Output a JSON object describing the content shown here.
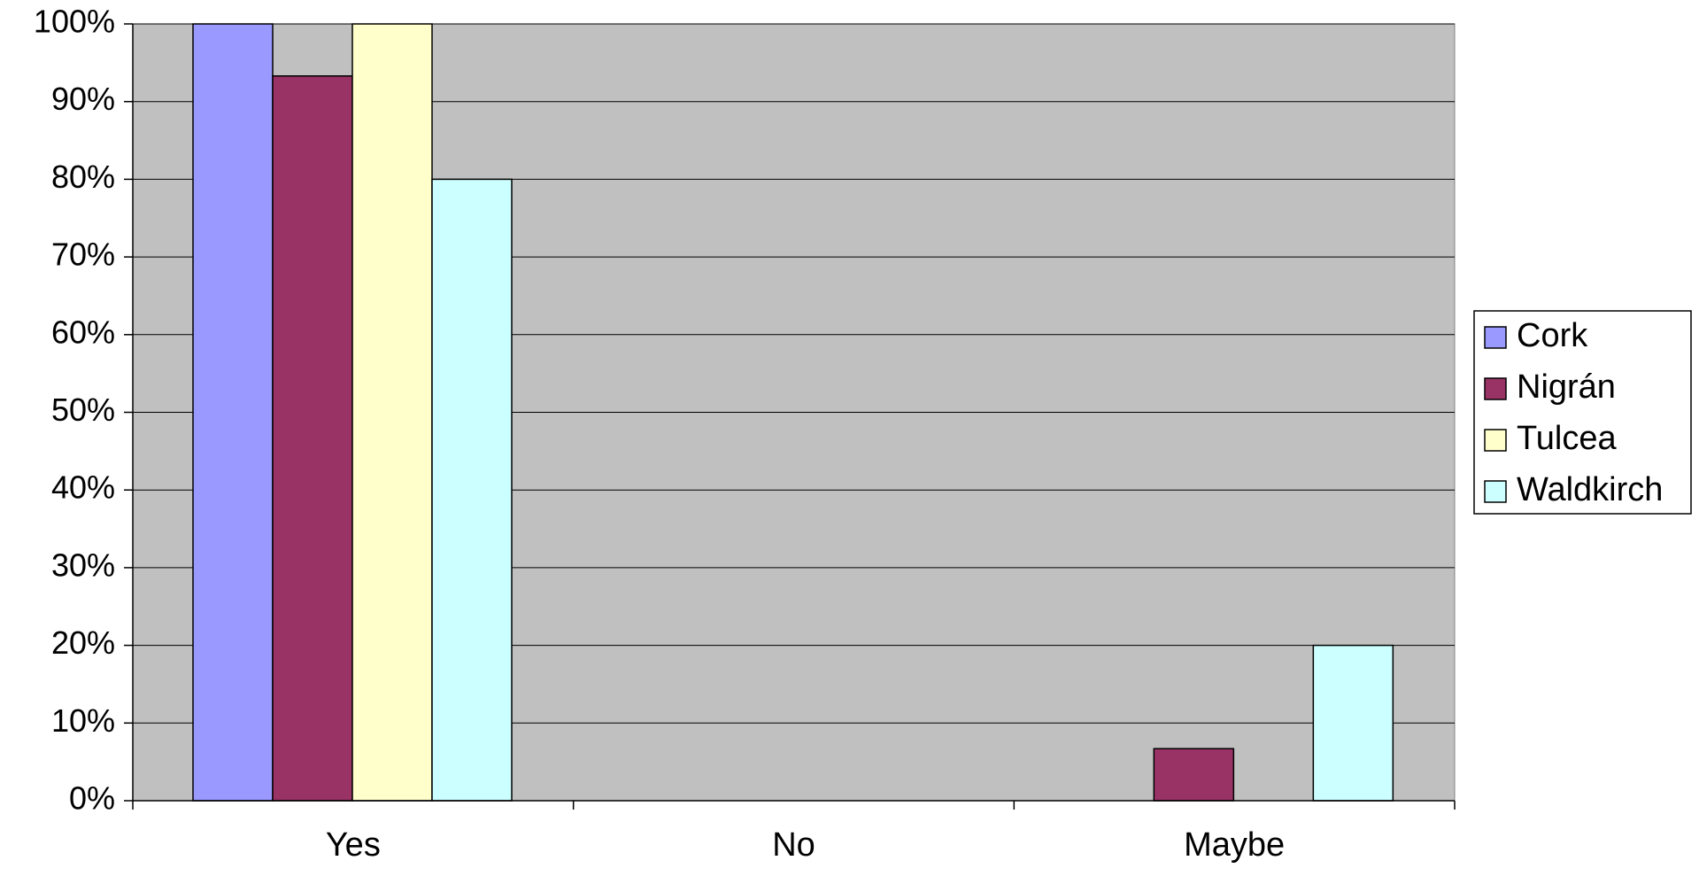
{
  "chart_data": {
    "type": "bar",
    "title": "",
    "xlabel": "",
    "ylabel": "",
    "categories": [
      "Yes",
      "No",
      "Maybe"
    ],
    "series": [
      {
        "name": "Cork",
        "color": "#9999ff",
        "values": [
          100,
          0,
          0
        ]
      },
      {
        "name": "Nigrán",
        "color": "#993366",
        "values": [
          93.3,
          0,
          6.7
        ]
      },
      {
        "name": "Tulcea",
        "color": "#ffffcc",
        "values": [
          100,
          0,
          0
        ]
      },
      {
        "name": "Waldkirch",
        "color": "#ccffff",
        "values": [
          80,
          0,
          20
        ]
      }
    ],
    "ylim": [
      0,
      100
    ],
    "yticks": [
      0,
      10,
      20,
      30,
      40,
      50,
      60,
      70,
      80,
      90,
      100
    ],
    "ytick_labels": [
      "0%",
      "10%",
      "20%",
      "30%",
      "40%",
      "50%",
      "60%",
      "70%",
      "80%",
      "90%",
      "100%"
    ],
    "grid": true,
    "plot_background": "#c0c0c0",
    "legend_position": "right"
  }
}
